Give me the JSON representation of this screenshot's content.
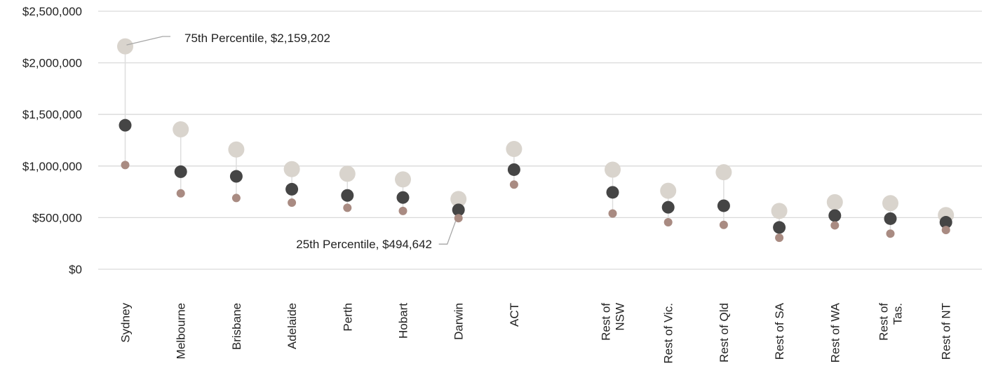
{
  "chart_data": {
    "type": "scatter",
    "title": "",
    "xlabel": "",
    "ylabel": "",
    "ylim": [
      0,
      2500000
    ],
    "y_ticks": [
      0,
      500000,
      1000000,
      1500000,
      2000000,
      2500000
    ],
    "y_tick_labels": [
      "$0",
      "$500,000",
      "$1,000,000",
      "$1,500,000",
      "$2,000,000",
      "$2,500,000"
    ],
    "grid": true,
    "categories": [
      [
        "Sydney"
      ],
      [
        "Melbourne"
      ],
      [
        "Brisbane"
      ],
      [
        "Adelaide"
      ],
      [
        "Perth"
      ],
      [
        "Hobart"
      ],
      [
        "Darwin"
      ],
      [
        "ACT"
      ],
      [
        "Rest of",
        "NSW"
      ],
      [
        "Rest of Vic."
      ],
      [
        "Rest of Qld"
      ],
      [
        "Rest of SA"
      ],
      [
        "Rest of WA"
      ],
      [
        "Rest of",
        "Tas."
      ],
      [
        "Rest of NT"
      ]
    ],
    "category_gap_after_index": 7,
    "series": [
      {
        "key": "p75",
        "color": "#d9d4cd",
        "values": [
          2159202,
          1355000,
          1160000,
          970000,
          925000,
          870000,
          680000,
          1165000,
          965000,
          760000,
          940000,
          565000,
          650000,
          640000,
          525000
        ]
      },
      {
        "key": "median",
        "color": "#454545",
        "values": [
          1395000,
          945000,
          900000,
          775000,
          715000,
          695000,
          575000,
          965000,
          745000,
          600000,
          615000,
          405000,
          520000,
          490000,
          455000
        ]
      },
      {
        "key": "p25",
        "color": "#a98b82",
        "values": [
          1010000,
          735000,
          690000,
          645000,
          595000,
          565000,
          494642,
          820000,
          540000,
          455000,
          430000,
          305000,
          425000,
          345000,
          380000
        ]
      }
    ],
    "annotations": [
      {
        "text": "75th Percentile, $2,159,202",
        "series": "p75",
        "index": 0
      },
      {
        "text": "25th Percentile, $494,642",
        "series": "p25",
        "index": 6
      }
    ]
  }
}
